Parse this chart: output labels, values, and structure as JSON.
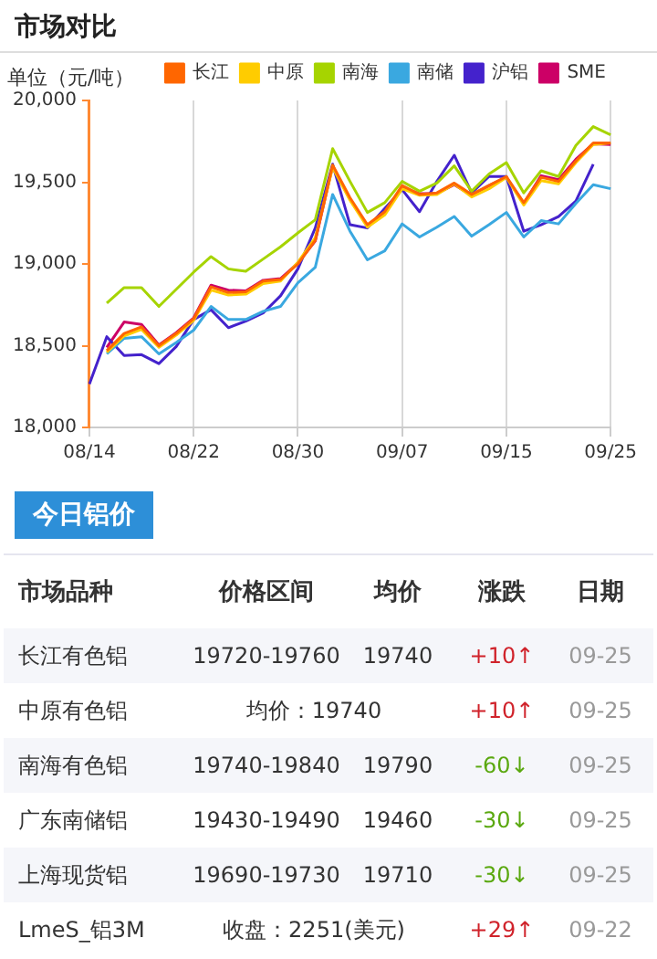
{
  "chart_data": [
    {
      "type": "line",
      "title": "市场对比",
      "ylabel": "单位（元/吨）",
      "categories": [
        "08/14",
        null,
        null,
        null,
        null,
        null,
        "08/22",
        null,
        null,
        null,
        null,
        null,
        "08/30",
        null,
        null,
        null,
        null,
        null,
        "09/07",
        null,
        null,
        null,
        null,
        null,
        "09/15",
        null,
        null,
        null,
        null,
        null,
        "09/25"
      ],
      "series": [
        {
          "name": "长江",
          "color": "#ff6600",
          "values": [
            null,
            18470,
            18575,
            18615,
            18500,
            18575,
            18665,
            18860,
            18825,
            18830,
            18895,
            18905,
            19000,
            19145,
            19605,
            19405,
            19240,
            19320,
            19480,
            19425,
            19435,
            19495,
            19425,
            19480,
            19535,
            19375,
            19530,
            19505,
            19630,
            19740,
            19740
          ]
        },
        {
          "name": "中原",
          "color": "#ffcc00",
          "values": [
            null,
            18460,
            18560,
            18600,
            18490,
            18565,
            18655,
            18840,
            18810,
            18815,
            18880,
            18895,
            19010,
            19160,
            19590,
            19390,
            19225,
            19300,
            19460,
            19420,
            19425,
            19490,
            19410,
            19460,
            19530,
            19360,
            19510,
            19490,
            19620,
            19730,
            19740
          ]
        },
        {
          "name": "南海",
          "color": "#a6d400",
          "values": [
            null,
            18760,
            18855,
            18855,
            18740,
            18845,
            18950,
            19045,
            18970,
            18955,
            19030,
            19105,
            19190,
            19270,
            19705,
            19505,
            19315,
            19375,
            19505,
            19445,
            19495,
            19600,
            19445,
            19550,
            19620,
            19435,
            19570,
            19535,
            19725,
            19840,
            19790
          ]
        },
        {
          "name": "南储",
          "color": "#3aa8e0",
          "values": [
            null,
            18450,
            18545,
            18555,
            18450,
            18520,
            18595,
            18740,
            18660,
            18660,
            18710,
            18740,
            18885,
            18980,
            19425,
            19200,
            19025,
            19080,
            19245,
            19165,
            19225,
            19290,
            19170,
            19240,
            19315,
            19165,
            19265,
            19245,
            19370,
            19485,
            19460
          ]
        },
        {
          "name": "沪铝",
          "color": "#4422cc",
          "values": [
            18265,
            18555,
            18440,
            18445,
            18390,
            18495,
            18660,
            18720,
            18610,
            18650,
            18700,
            18805,
            18970,
            19220,
            19610,
            19240,
            19220,
            19340,
            19455,
            19320,
            19505,
            19665,
            19435,
            19535,
            19535,
            19200,
            19240,
            19290,
            19385,
            19610,
            null
          ]
        },
        {
          "name": "SME",
          "color": "#cc0066",
          "values": [
            null,
            18490,
            18645,
            18630,
            18505,
            18580,
            18670,
            18870,
            18840,
            18835,
            18900,
            18910,
            19005,
            19140,
            19600,
            19395,
            19235,
            19315,
            19470,
            19430,
            19430,
            19485,
            19420,
            19480,
            19530,
            19370,
            19540,
            19515,
            19640,
            19735,
            19730
          ]
        }
      ],
      "ylim": [
        18000,
        20000
      ],
      "yticks": [
        {
          "value": 18000,
          "label": "18,000"
        },
        {
          "value": 18500,
          "label": "18,500"
        },
        {
          "value": 19000,
          "label": "19,000"
        },
        {
          "value": 19500,
          "label": "19,500"
        },
        {
          "value": 20000,
          "label": "20,000"
        }
      ],
      "grid": "x",
      "legend": "top right",
      "marker": "none",
      "line_style": "solid"
    },
    {
      "type": "other",
      "title": "今日铝价",
      "annotations": [
        "市场品种",
        "价格区间",
        "均价",
        "涨跌",
        "日期",
        "长江有色铝",
        "19720-19760",
        "19740",
        "+10↑",
        "09-25",
        "中原有色铝",
        "均价：19740",
        "+10↑",
        "09-25",
        "南海有色铝",
        "19740-19840",
        "19790",
        "-60↓",
        "09-25",
        "广东南储铝",
        "19430-19490",
        "19460",
        "-30↓",
        "09-25",
        "上海现货铝",
        "19690-19730",
        "19710",
        "-30↓",
        "09-25",
        "LmeS_铝3M",
        "收盘：2251(美元)",
        "+29↑",
        "09-22"
      ]
    }
  ]
}
